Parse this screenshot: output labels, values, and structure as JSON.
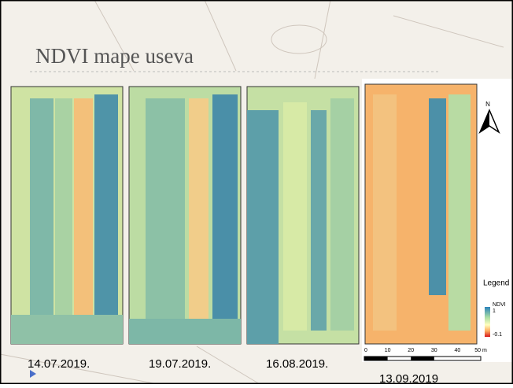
{
  "slide": {
    "title": "NDVI mape useva",
    "maps": [
      {
        "date": "14.07.2019."
      },
      {
        "date": "19.07.2019."
      },
      {
        "date": "16.08.2019."
      },
      {
        "date": "13.09.2019"
      }
    ],
    "north_label": "N",
    "legend": {
      "title": "Legend",
      "layer": "NDVI",
      "max": "1",
      "min": "-0.1"
    },
    "scale_bar": [
      "0",
      "10",
      "20",
      "30",
      "40",
      "50 m"
    ]
  }
}
